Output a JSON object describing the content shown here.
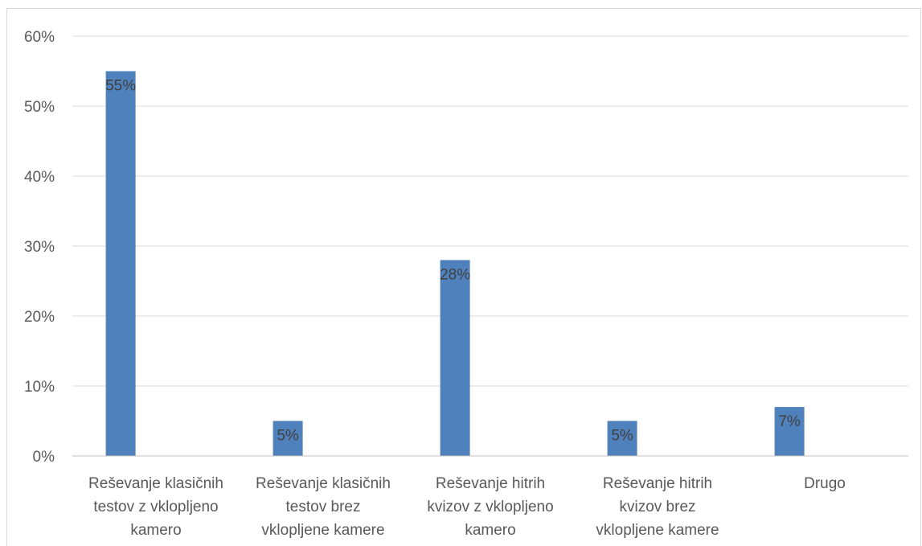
{
  "chart_data": {
    "type": "bar",
    "title": "",
    "xlabel": "",
    "ylabel": "",
    "categories": [
      [
        "Reševanje klasičnih",
        "testov z  vklopljeno",
        "kamero"
      ],
      [
        "Reševanje klasičnih",
        "testov brez",
        "vklopljene kamere"
      ],
      [
        "Reševanje hitrih",
        "kvizov z  vklopljeno",
        "kamero"
      ],
      [
        "Reševanje hitrih",
        "kvizov brez",
        "vklopljene kamere"
      ],
      [
        "Drugo"
      ]
    ],
    "values": [
      55,
      5,
      28,
      5,
      7
    ],
    "data_labels": [
      "55%",
      "5%",
      "28%",
      "5%",
      "7%"
    ],
    "ylim": [
      0,
      60
    ],
    "y_ticks": [
      0,
      10,
      20,
      30,
      40,
      50,
      60
    ],
    "y_tick_labels": [
      "0%",
      "10%",
      "20%",
      "30%",
      "40%",
      "50%",
      "60%"
    ],
    "grid": true,
    "legend": "none",
    "bar_color": "#4f81bd",
    "grid_color": "#d9d9d9",
    "axis_color": "#bfbfbf"
  }
}
